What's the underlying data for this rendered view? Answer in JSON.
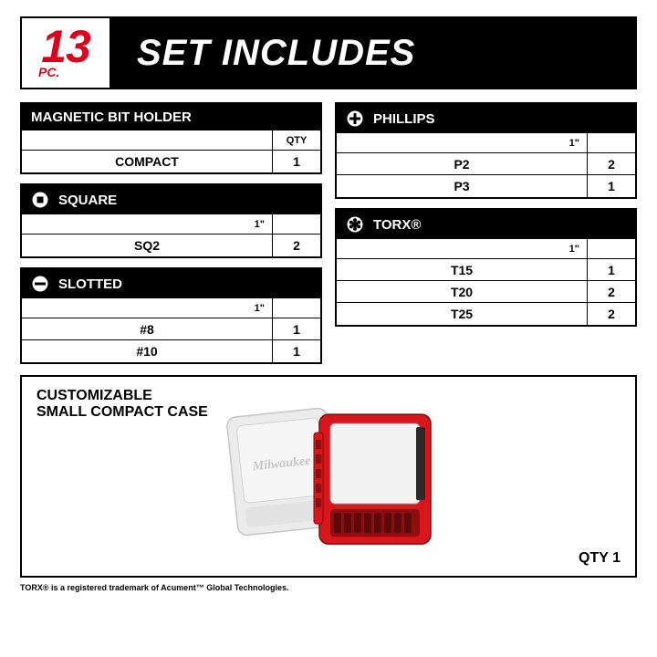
{
  "colors": {
    "red": "#db011c",
    "black": "#000000",
    "white": "#ffffff",
    "case_red": "#d8161b",
    "case_grey": "#d0d0d0",
    "case_dark": "#2b2b2b"
  },
  "header": {
    "count": "13",
    "unit": "PC.",
    "title": "SET INCLUDES"
  },
  "sections_left": [
    {
      "icon": "none",
      "title": "MAGNETIC BIT HOLDER",
      "size_col": "",
      "qty_col": "QTY",
      "rows": [
        {
          "name": "COMPACT",
          "qty": "1"
        }
      ]
    },
    {
      "icon": "square",
      "title": "SQUARE",
      "size_col": "1\"",
      "qty_col": "",
      "rows": [
        {
          "name": "SQ2",
          "qty": "2"
        }
      ]
    },
    {
      "icon": "slotted",
      "title": "SLOTTED",
      "size_col": "1\"",
      "qty_col": "",
      "rows": [
        {
          "name": "#8",
          "qty": "1"
        },
        {
          "name": "#10",
          "qty": "1"
        }
      ]
    }
  ],
  "sections_right": [
    {
      "icon": "phillips",
      "title": "PHILLIPS",
      "size_col": "1\"",
      "qty_col": "",
      "rows": [
        {
          "name": "P2",
          "qty": "2"
        },
        {
          "name": "P3",
          "qty": "1"
        }
      ]
    },
    {
      "icon": "torx",
      "title": "TORX®",
      "size_col": "1\"",
      "qty_col": "",
      "rows": [
        {
          "name": "T15",
          "qty": "1"
        },
        {
          "name": "T20",
          "qty": "2"
        },
        {
          "name": "T25",
          "qty": "2"
        }
      ]
    }
  ],
  "case": {
    "title_l1": "CUSTOMIZABLE",
    "title_l2": "SMALL COMPACT CASE",
    "qty_label": "QTY 1",
    "brand": "Milwaukee"
  },
  "footnote": "TORX® is a registered trademark of Acument™ Global Technologies."
}
